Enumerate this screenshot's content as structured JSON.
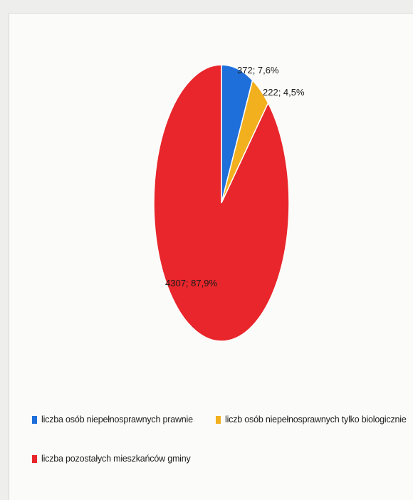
{
  "chart_data": {
    "type": "pie",
    "title": "",
    "slices": [
      {
        "label": "liczba osób niepełnosprawnych prawnie",
        "value": 372,
        "percent": "7,6%",
        "data_label": "372; 7,6%",
        "color": "#1e6fd9"
      },
      {
        "label": "liczb osób niepełnosprawnych tylko biologicznie",
        "value": 222,
        "percent": "4,5%",
        "data_label": "222; 4,5%",
        "color": "#f2b01e"
      },
      {
        "label": "liczba pozostałych mieszkańców gminy",
        "value": 4307,
        "percent": "87,9%",
        "data_label": "4307; 87,9%",
        "color": "#e8262b"
      }
    ],
    "legend_position": "bottom"
  }
}
